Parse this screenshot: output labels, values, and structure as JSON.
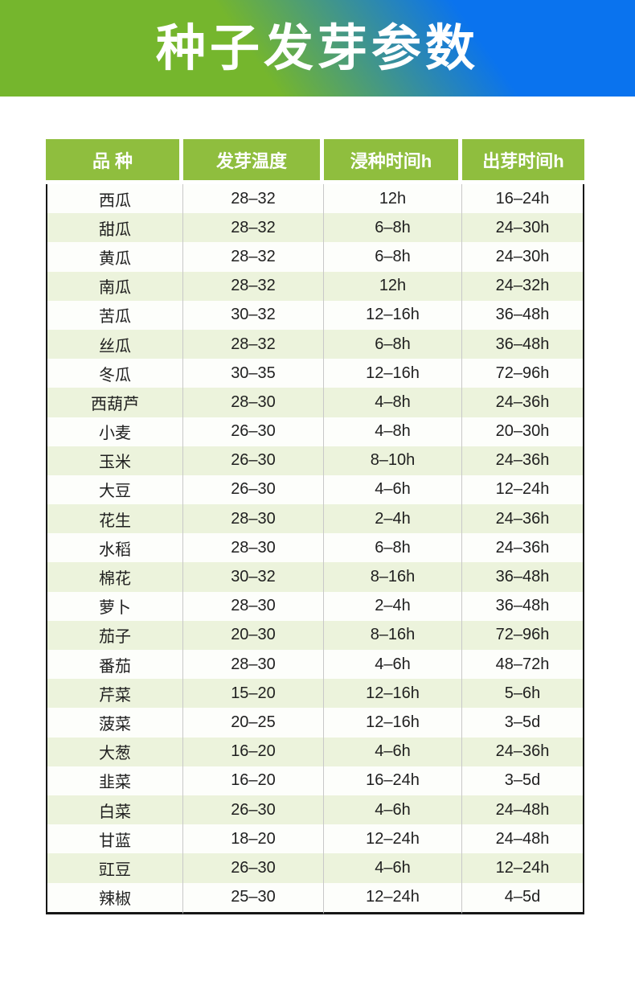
{
  "banner": {
    "title": "种子发芽参数",
    "gradient_left_color": "#75b62d",
    "gradient_right_color": "#0a73ee",
    "title_color": "#ffffff"
  },
  "colors": {
    "table_header_bg": "#8fbe3e",
    "table_header_text": "#ffffff",
    "row_alt_bg": "#ecf3dc",
    "row_bg": "#fdfefb",
    "outer_border": "#161616",
    "body_text": "#1f1f1f"
  },
  "chart_data": {
    "type": "table",
    "title": "种子发芽参数",
    "columns": [
      "品 种",
      "发芽温度",
      "浸种时间h",
      "出芽时间h"
    ],
    "rows": [
      [
        "西瓜",
        "28–32",
        "12h",
        "16–24h"
      ],
      [
        "甜瓜",
        "28–32",
        "6–8h",
        "24–30h"
      ],
      [
        "黄瓜",
        "28–32",
        "6–8h",
        "24–30h"
      ],
      [
        "南瓜",
        "28–32",
        "12h",
        "24–32h"
      ],
      [
        "苦瓜",
        "30–32",
        "12–16h",
        "36–48h"
      ],
      [
        "丝瓜",
        "28–32",
        "6–8h",
        "36–48h"
      ],
      [
        "冬瓜",
        "30–35",
        "12–16h",
        "72–96h"
      ],
      [
        "西葫芦",
        "28–30",
        "4–8h",
        "24–36h"
      ],
      [
        "小麦",
        "26–30",
        "4–8h",
        "20–30h"
      ],
      [
        "玉米",
        "26–30",
        "8–10h",
        "24–36h"
      ],
      [
        "大豆",
        "26–30",
        "4–6h",
        "12–24h"
      ],
      [
        "花生",
        "28–30",
        "2–4h",
        "24–36h"
      ],
      [
        "水稻",
        "28–30",
        "6–8h",
        "24–36h"
      ],
      [
        "棉花",
        "30–32",
        "8–16h",
        "36–48h"
      ],
      [
        "萝卜",
        "28–30",
        "2–4h",
        "36–48h"
      ],
      [
        "茄子",
        "20–30",
        "8–16h",
        "72–96h"
      ],
      [
        "番茄",
        "28–30",
        "4–6h",
        "48–72h"
      ],
      [
        "芹菜",
        "15–20",
        "12–16h",
        "5–6h"
      ],
      [
        "菠菜",
        "20–25",
        "12–16h",
        "3–5d"
      ],
      [
        "大葱",
        "16–20",
        "4–6h",
        "24–36h"
      ],
      [
        "韭菜",
        "16–20",
        "16–24h",
        "3–5d"
      ],
      [
        "白菜",
        "26–30",
        "4–6h",
        "24–48h"
      ],
      [
        "甘蓝",
        "18–20",
        "12–24h",
        "24–48h"
      ],
      [
        "豇豆",
        "26–30",
        "4–6h",
        "12–24h"
      ],
      [
        "辣椒",
        "25–30",
        "12–24h",
        "4–5d"
      ]
    ]
  }
}
